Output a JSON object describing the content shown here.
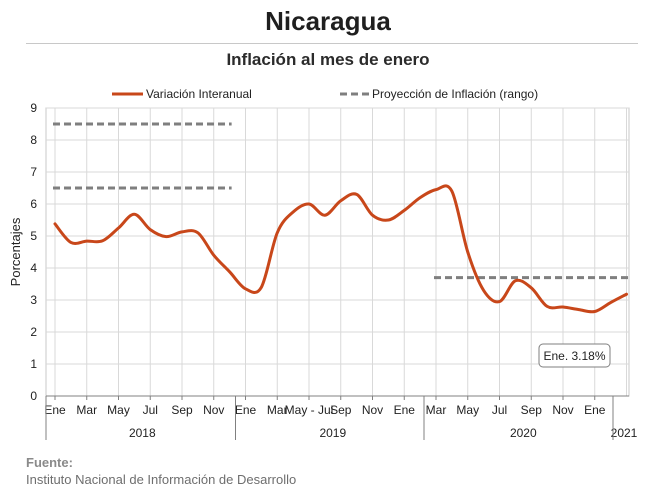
{
  "page": {
    "title": "Nicaragua",
    "subtitle": "Inflación al mes de enero",
    "source_label": "Fuente:",
    "source_text": "Instituto Nacional de Información de  Desarrollo"
  },
  "colors": {
    "series": "#c8471a",
    "projection": "#7f7f7f",
    "grid": "#d9d9d9",
    "axis": "#808080"
  },
  "chart_data": {
    "type": "line",
    "ylabel": "Porcentajes",
    "ylim": [
      0,
      9
    ],
    "yticks": [
      "0",
      "1",
      "2",
      "3",
      "4",
      "5",
      "6",
      "7",
      "8",
      "9"
    ],
    "grid": true,
    "legend_position": "top",
    "month_ticks": [
      "Ene",
      "Mar",
      "May",
      "Jul",
      "Sep",
      "Nov",
      "Ene",
      "Mar",
      "May - Jul",
      "Sep",
      "Nov",
      "Ene",
      "Mar",
      "May",
      "Jul",
      "Sep",
      "Nov",
      "Ene"
    ],
    "years": [
      "2018",
      "2019",
      "2020",
      "2021"
    ],
    "series": [
      {
        "name": "Variación Interanual",
        "x": [
          "2018-01",
          "2018-02",
          "2018-03",
          "2018-04",
          "2018-05",
          "2018-06",
          "2018-07",
          "2018-08",
          "2018-09",
          "2018-10",
          "2018-11",
          "2018-12",
          "2019-01",
          "2019-02",
          "2019-03",
          "2019-04",
          "2019-05",
          "2019-06",
          "2019-07",
          "2019-08",
          "2019-09",
          "2019-10",
          "2019-11",
          "2019-12",
          "2020-01",
          "2020-02",
          "2020-03",
          "2020-04",
          "2020-05",
          "2020-06",
          "2020-07",
          "2020-08",
          "2020-09",
          "2020-10",
          "2020-11",
          "2020-12",
          "2021-01"
        ],
        "values": [
          5.38,
          4.8,
          4.84,
          4.85,
          5.25,
          5.68,
          5.2,
          4.98,
          5.13,
          5.1,
          4.4,
          3.88,
          3.35,
          3.4,
          5.1,
          5.75,
          6.0,
          5.65,
          6.1,
          6.3,
          5.65,
          5.5,
          5.8,
          6.2,
          6.45,
          6.4,
          4.5,
          3.3,
          2.95,
          3.6,
          3.38,
          2.8,
          2.78,
          2.7,
          2.64,
          2.92,
          3.18
        ]
      }
    ],
    "projection": {
      "name": "Proyección de Inflación (rango)",
      "segments": [
        {
          "from": "2018-01",
          "to": "2018-12",
          "value": 8.5
        },
        {
          "from": "2018-01",
          "to": "2018-12",
          "value": 6.5
        },
        {
          "from": "2020-01",
          "to": "2021-01",
          "value": 3.7
        }
      ]
    },
    "annotation": "Ene. 3.18%"
  }
}
